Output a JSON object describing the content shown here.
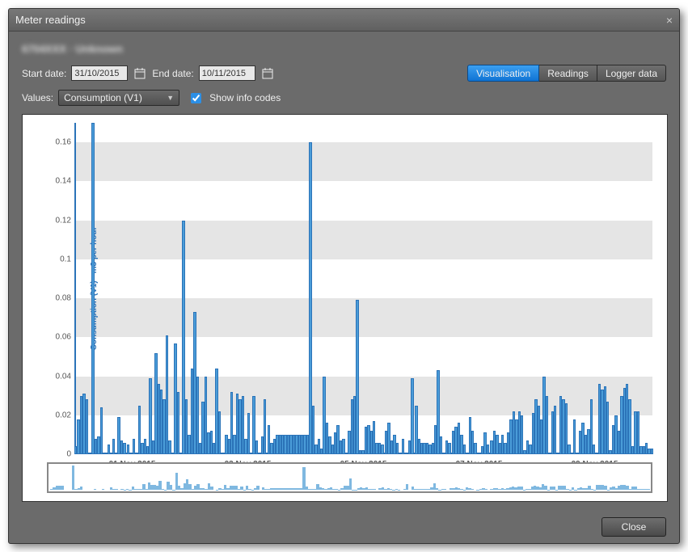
{
  "window": {
    "title": "Meter readings",
    "blurred_header": "6704XXX · Unknown"
  },
  "dates": {
    "start_label": "Start date:",
    "start_value": "31/10/2015",
    "end_label": "End date:",
    "end_value": "10/11/2015"
  },
  "tabs": {
    "visualisation": "Visualisation",
    "readings": "Readings",
    "logger": "Logger data",
    "active": "visualisation"
  },
  "values_row": {
    "label": "Values:",
    "selected": "Consumption (V1)",
    "checkbox_label": "Show info codes",
    "checkbox_checked": true
  },
  "chart": {
    "ylabel": "Consumption (V1) - m3 per hour",
    "ymax": 0.17,
    "yticks": [
      0,
      0.02,
      0.04,
      0.06,
      0.08,
      0.1,
      0.12,
      0.14,
      0.16
    ],
    "xticks": [
      "01 Nov 2015",
      "03 Nov 2015",
      "05 Nov 2015",
      "07 Nov 2015",
      "09 Nov 2015"
    ],
    "bar_color": "#4a9cd8",
    "bar_border": "#2b73b8",
    "band_color": "#e5e5e5",
    "data": [
      0.004,
      0.018,
      0.03,
      0.031,
      0.028,
      0,
      0,
      0,
      0.17,
      0.008,
      0.009,
      0.024,
      0,
      0,
      0,
      0,
      0.005,
      0,
      0,
      0.008,
      0,
      0,
      0.019,
      0.007,
      0.006,
      0,
      0.005,
      0.001,
      0.008,
      0.001,
      0.025,
      0.006,
      0.008,
      0.004,
      0.039,
      0.007,
      0.052,
      0.036,
      0.033,
      0.028,
      0.061,
      0.007,
      0.001,
      0.057,
      0.032,
      0.001,
      0.12,
      0.028,
      0.01,
      0.044,
      0.073,
      0.04,
      0.006,
      0.027,
      0.04,
      0.011,
      0.012,
      0.006,
      0.044,
      0.022,
      0,
      0.001,
      0.01,
      0.008,
      0.032,
      0.01,
      0.031,
      0.028,
      0.03,
      0.008,
      0.021,
      0.001,
      0.03,
      0.007,
      0.001,
      0.009,
      0.028,
      0,
      0.015,
      0.006,
      0.008,
      0.01,
      0.01,
      0.01,
      0.01,
      0.01,
      0.01,
      0.01,
      0.01,
      0.01,
      0.01,
      0.01,
      0.01,
      0.16,
      0.025,
      0.005,
      0.008,
      0.003,
      0.04,
      0.016,
      0.009,
      0.005,
      0.011,
      0.015,
      0.007,
      0.008,
      0.001,
      0.012,
      0.028,
      0.03,
      0.079,
      0.002,
      0.002,
      0.014,
      0.015,
      0.012,
      0.017,
      0.006,
      0.006,
      0.005,
      0,
      0.012,
      0.016,
      0.007,
      0.01,
      0.006,
      0.001,
      0.008,
      0.001,
      0,
      0.007,
      0.039,
      0,
      0.025,
      0.008,
      0.006,
      0.006,
      0.006,
      0.005,
      0.006,
      0.015,
      0.043,
      0.009,
      0.001,
      0.007,
      0.006,
      0,
      0.012,
      0.014,
      0.016,
      0.01,
      0.005,
      0.001,
      0.019,
      0.012,
      0.006,
      0,
      0.001,
      0.004,
      0.011,
      0.005,
      0,
      0.007,
      0.012,
      0.01,
      0.006,
      0.01,
      0.006,
      0.011,
      0.018,
      0.022,
      0.018,
      0.022,
      0.02,
      0.002,
      0.007,
      0.005,
      0.021,
      0.028,
      0.025,
      0.018,
      0.04,
      0.03,
      0.001,
      0.022,
      0.025,
      0.001,
      0.03,
      0.028,
      0.026,
      0.005,
      0.001,
      0.018,
      0.001,
      0.012,
      0.016,
      0.01,
      0.013,
      0.028,
      0.005,
      0.001,
      0.036,
      0.033,
      0.035,
      0.027,
      0.002,
      0.015,
      0.02,
      0.012,
      0.03,
      0.034,
      0.036,
      0.028,
      0.004,
      0.022,
      0.022,
      0.004,
      0.004,
      0.006,
      0.003,
      0.003
    ]
  },
  "footer": {
    "close": "Close"
  }
}
